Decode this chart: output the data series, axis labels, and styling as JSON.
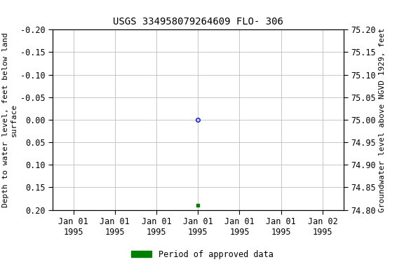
{
  "title": "USGS 334958079264609 FLO- 306",
  "left_ylabel_lines": [
    "Depth to water level, feet below land",
    "surface"
  ],
  "right_ylabel": "Groundwater level above NGVD 1929, feet",
  "ylim_left": [
    -0.2,
    0.2
  ],
  "ylim_right_top": 75.2,
  "ylim_right_bottom": 74.8,
  "yticks_left": [
    -0.2,
    -0.15,
    -0.1,
    -0.05,
    0.0,
    0.05,
    0.1,
    0.15,
    0.2
  ],
  "ytick_labels_left": [
    "-0.20",
    "-0.15",
    "-0.10",
    "-0.05",
    "0.00",
    "0.05",
    "0.10",
    "0.15",
    "0.20"
  ],
  "yticks_right": [
    75.2,
    75.15,
    75.1,
    75.05,
    75.0,
    74.95,
    74.9,
    74.85,
    74.8
  ],
  "ytick_labels_right": [
    "75.20",
    "75.15",
    "75.10",
    "75.05",
    "75.00",
    "74.95",
    "74.90",
    "74.85",
    "74.80"
  ],
  "xtick_positions": [
    0,
    1,
    2,
    3,
    4,
    5,
    6
  ],
  "xtick_labels": [
    "Jan 01\n1995",
    "Jan 01\n1995",
    "Jan 01\n1995",
    "Jan 01\n1995",
    "Jan 01\n1995",
    "Jan 01\n1995",
    "Jan 02\n1995"
  ],
  "xlim": [
    -0.5,
    6.5
  ],
  "data_blue_x": [
    3.0
  ],
  "data_blue_y": [
    0.0
  ],
  "data_green_x": [
    3.0
  ],
  "data_green_y": [
    0.19
  ],
  "background_color": "#ffffff",
  "grid_color": "#b0b0b0",
  "legend_label": "Period of approved data",
  "title_fontsize": 10,
  "tick_fontsize": 8.5,
  "ylabel_fontsize": 8
}
